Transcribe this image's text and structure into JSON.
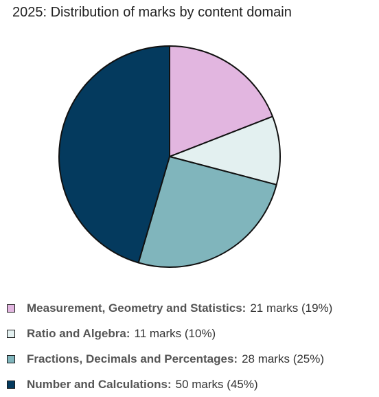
{
  "chart_data": {
    "type": "pie",
    "title": "2025: Distribution of marks by content domain",
    "categories": [
      "Measurement, Geometry and Statistics:",
      "Ratio and Algebra:",
      "Fractions, Decimals and Percentages:",
      "Number and Calculations:"
    ],
    "values": [
      21,
      11,
      28,
      50
    ],
    "value_labels": [
      "21 marks (19%)",
      "11 marks (10%)",
      "28 marks (25%)",
      "50 marks (45%)"
    ],
    "colors": [
      "#e2b6e0",
      "#e3f0f0",
      "#80b5bc",
      "#043a5e"
    ],
    "start": "12 o'clock",
    "direction": "clockwise",
    "legend_position": "bottom"
  }
}
